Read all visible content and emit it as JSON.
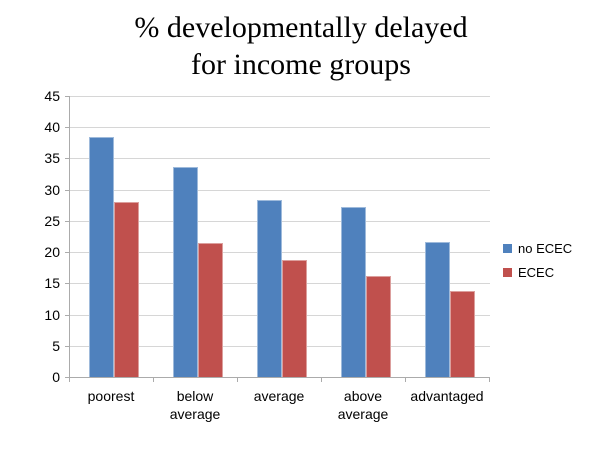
{
  "chart_data": {
    "type": "bar",
    "title": "% developmentally delayed for income groups",
    "title_lines": [
      "% developmentally delayed",
      "for income groups"
    ],
    "categories": [
      "poorest",
      "below average",
      "average",
      "above average",
      "advantaged"
    ],
    "series": [
      {
        "name": "no ECEC",
        "color": "#4F81BD",
        "values": [
          38.4,
          33.6,
          28.4,
          27.2,
          21.7
        ]
      },
      {
        "name": "ECEC",
        "color": "#C0504D",
        "values": [
          28.0,
          21.4,
          18.8,
          16.2,
          13.7
        ]
      }
    ],
    "xlabel": "",
    "ylabel": "",
    "ylim": [
      0,
      45
    ],
    "ytick_step": 5,
    "ytick_labels": [
      "0",
      "5",
      "10",
      "15",
      "20",
      "25",
      "30",
      "35",
      "40",
      "45"
    ],
    "grid": true,
    "legend_position": "right",
    "colors": {
      "gridline": "#d6d6d6",
      "axis": "#ababab",
      "text": "#000000",
      "background": "#ffffff"
    }
  }
}
